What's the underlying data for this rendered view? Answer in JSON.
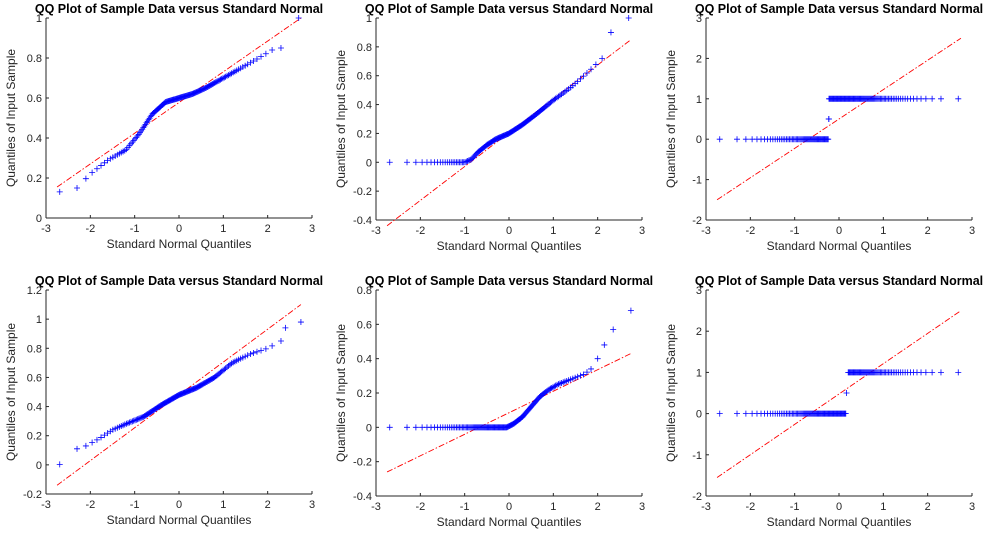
{
  "figure_title": "",
  "chart_data": [
    {
      "type": "scatter",
      "title": "QQ Plot of Sample Data versus Standard Normal",
      "xlabel": "Standard Normal Quantiles",
      "ylabel": "Quantiles of Input Sample",
      "xlim": [
        -3,
        3
      ],
      "ylim": [
        0,
        1
      ],
      "xticks": [
        "-3",
        "-2",
        "-1",
        "0",
        "1",
        "2",
        "3"
      ],
      "yticks": [
        "0",
        "0.2",
        "0.4",
        "0.6",
        "0.8",
        "1"
      ],
      "marker_color": "#0000ff",
      "line_color": "#ff0000",
      "reference_line": {
        "x": [
          -2.75,
          2.75
        ],
        "y": [
          0.155,
          1.0
        ]
      },
      "quantile_curve": {
        "x": [
          -2.7,
          -2.3,
          -2.0,
          -1.6,
          -1.2,
          -0.9,
          -0.6,
          -0.3,
          0.0,
          0.3,
          0.6,
          1.0,
          1.4,
          1.8,
          2.1
        ],
        "y": [
          0.13,
          0.15,
          0.22,
          0.29,
          0.34,
          0.42,
          0.52,
          0.58,
          0.6,
          0.62,
          0.65,
          0.7,
          0.75,
          0.8,
          0.84
        ]
      },
      "outliers": {
        "x": [
          2.3,
          2.7
        ],
        "y": [
          0.85,
          1.0
        ]
      },
      "n_points": 140
    },
    {
      "type": "scatter",
      "title": "QQ Plot of Sample Data versus Standard Normal",
      "xlabel": "Standard Normal Quantiles",
      "ylabel": "Quantiles of Input Sample",
      "xlim": [
        -3,
        3
      ],
      "ylim": [
        -0.4,
        1
      ],
      "xticks": [
        "-3",
        "-2",
        "-1",
        "0",
        "1",
        "2",
        "3"
      ],
      "yticks": [
        "-0.4",
        "-0.2",
        "0",
        "0.2",
        "0.4",
        "0.6",
        "0.8",
        "1"
      ],
      "marker_color": "#0000ff",
      "line_color": "#ff0000",
      "reference_line": {
        "x": [
          -2.75,
          2.75
        ],
        "y": [
          -0.44,
          0.85
        ]
      },
      "quantile_curve": {
        "x": [
          -2.7,
          -2.4,
          -2.0,
          -1.5,
          -1.0,
          -0.85,
          -0.7,
          -0.5,
          -0.3,
          0.0,
          0.3,
          0.6,
          1.0,
          1.4,
          1.8,
          2.1
        ],
        "y": [
          0.0,
          0.0,
          0.0,
          0.0,
          0.0,
          0.02,
          0.07,
          0.12,
          0.16,
          0.2,
          0.26,
          0.33,
          0.43,
          0.52,
          0.63,
          0.72
        ]
      },
      "outliers": {
        "x": [
          2.3,
          2.7
        ],
        "y": [
          0.9,
          1.0
        ]
      },
      "n_points": 140
    },
    {
      "type": "scatter",
      "title": "QQ Plot of Sample Data versus Standard Normal",
      "xlabel": "Standard Normal Quantiles",
      "ylabel": "Quantiles of Input Sample",
      "xlim": [
        -3,
        3
      ],
      "ylim": [
        -2,
        3
      ],
      "xticks": [
        "-3",
        "-2",
        "-1",
        "0",
        "1",
        "2",
        "3"
      ],
      "yticks": [
        "-2",
        "-1",
        "0",
        "1",
        "2",
        "3"
      ],
      "marker_color": "#0000ff",
      "line_color": "#ff0000",
      "reference_line": {
        "x": [
          -2.75,
          2.75
        ],
        "y": [
          -1.5,
          2.5
        ]
      },
      "levels": [
        {
          "y": 0,
          "x_from": -2.7,
          "x_to": -0.25
        },
        {
          "y": 1,
          "x_from": -0.22,
          "x_to": 2.7
        }
      ],
      "transition": {
        "x": -0.23,
        "y": [
          0.5,
          0.5
        ]
      },
      "n_points": 140
    },
    {
      "type": "scatter",
      "title": "QQ Plot of Sample Data versus Standard Normal",
      "xlabel": "Standard Normal Quantiles",
      "ylabel": "Quantiles of Input Sample",
      "xlim": [
        -3,
        3
      ],
      "ylim": [
        -0.2,
        1.2
      ],
      "xticks": [
        "-3",
        "-2",
        "-1",
        "0",
        "1",
        "2",
        "3"
      ],
      "yticks": [
        "-0.2",
        "0",
        "0.2",
        "0.4",
        "0.6",
        "0.8",
        "1",
        "1.2"
      ],
      "marker_color": "#0000ff",
      "line_color": "#ff0000",
      "reference_line": {
        "x": [
          -2.75,
          2.75
        ],
        "y": [
          -0.14,
          1.1
        ]
      },
      "quantile_curve": {
        "x": [
          -2.7,
          -2.4,
          -2.1,
          -1.8,
          -1.5,
          -1.2,
          -0.8,
          -0.4,
          0.0,
          0.4,
          0.8,
          1.2,
          1.6,
          2.0,
          2.3
        ],
        "y": [
          0.0,
          0.1,
          0.13,
          0.18,
          0.24,
          0.28,
          0.33,
          0.41,
          0.48,
          0.53,
          0.6,
          0.7,
          0.76,
          0.8,
          0.85
        ]
      },
      "outliers": {
        "x": [
          2.4,
          2.75
        ],
        "y": [
          0.94,
          0.98
        ]
      },
      "n_points": 140
    },
    {
      "type": "scatter",
      "title": "QQ Plot of Sample Data versus Standard Normal",
      "xlabel": "Standard Normal Quantiles",
      "ylabel": "Quantiles of Input Sample",
      "xlim": [
        -3,
        3
      ],
      "ylim": [
        -0.4,
        0.8
      ],
      "xticks": [
        "-3",
        "-2",
        "-1",
        "0",
        "1",
        "2",
        "3"
      ],
      "yticks": [
        "-0.4",
        "-0.2",
        "0",
        "0.2",
        "0.4",
        "0.6",
        "0.8"
      ],
      "marker_color": "#0000ff",
      "line_color": "#ff0000",
      "reference_line": {
        "x": [
          -2.75,
          2.75
        ],
        "y": [
          -0.26,
          0.43
        ]
      },
      "quantile_curve": {
        "x": [
          -2.7,
          -2.0,
          -1.0,
          -0.3,
          -0.05,
          0.1,
          0.3,
          0.5,
          0.7,
          0.9,
          1.1,
          1.4,
          1.7,
          1.9
        ],
        "y": [
          0.0,
          0.0,
          0.0,
          0.0,
          0.0,
          0.02,
          0.06,
          0.12,
          0.18,
          0.22,
          0.25,
          0.28,
          0.31,
          0.35
        ]
      },
      "outliers": {
        "x": [
          2.0,
          2.15,
          2.35,
          2.75
        ],
        "y": [
          0.4,
          0.48,
          0.57,
          0.68
        ]
      },
      "n_points": 140
    },
    {
      "type": "scatter",
      "title": "QQ Plot of Sample Data versus Standard Normal",
      "xlabel": "Standard Normal Quantiles",
      "ylabel": "Quantiles of Input Sample",
      "xlim": [
        -3,
        3
      ],
      "ylim": [
        -2,
        3
      ],
      "xticks": [
        "-3",
        "-2",
        "-1",
        "0",
        "1",
        "2",
        "3"
      ],
      "yticks": [
        "-2",
        "-1",
        "0",
        "1",
        "2",
        "3"
      ],
      "marker_color": "#0000ff",
      "line_color": "#ff0000",
      "reference_line": {
        "x": [
          -2.75,
          2.75
        ],
        "y": [
          -1.55,
          2.5
        ]
      },
      "levels": [
        {
          "y": 0,
          "x_from": -2.7,
          "x_to": 0.15
        },
        {
          "y": 1,
          "x_from": 0.2,
          "x_to": 2.7
        }
      ],
      "transition": {
        "x": 0.17,
        "y": [
          0.5
        ]
      },
      "n_points": 140
    }
  ]
}
